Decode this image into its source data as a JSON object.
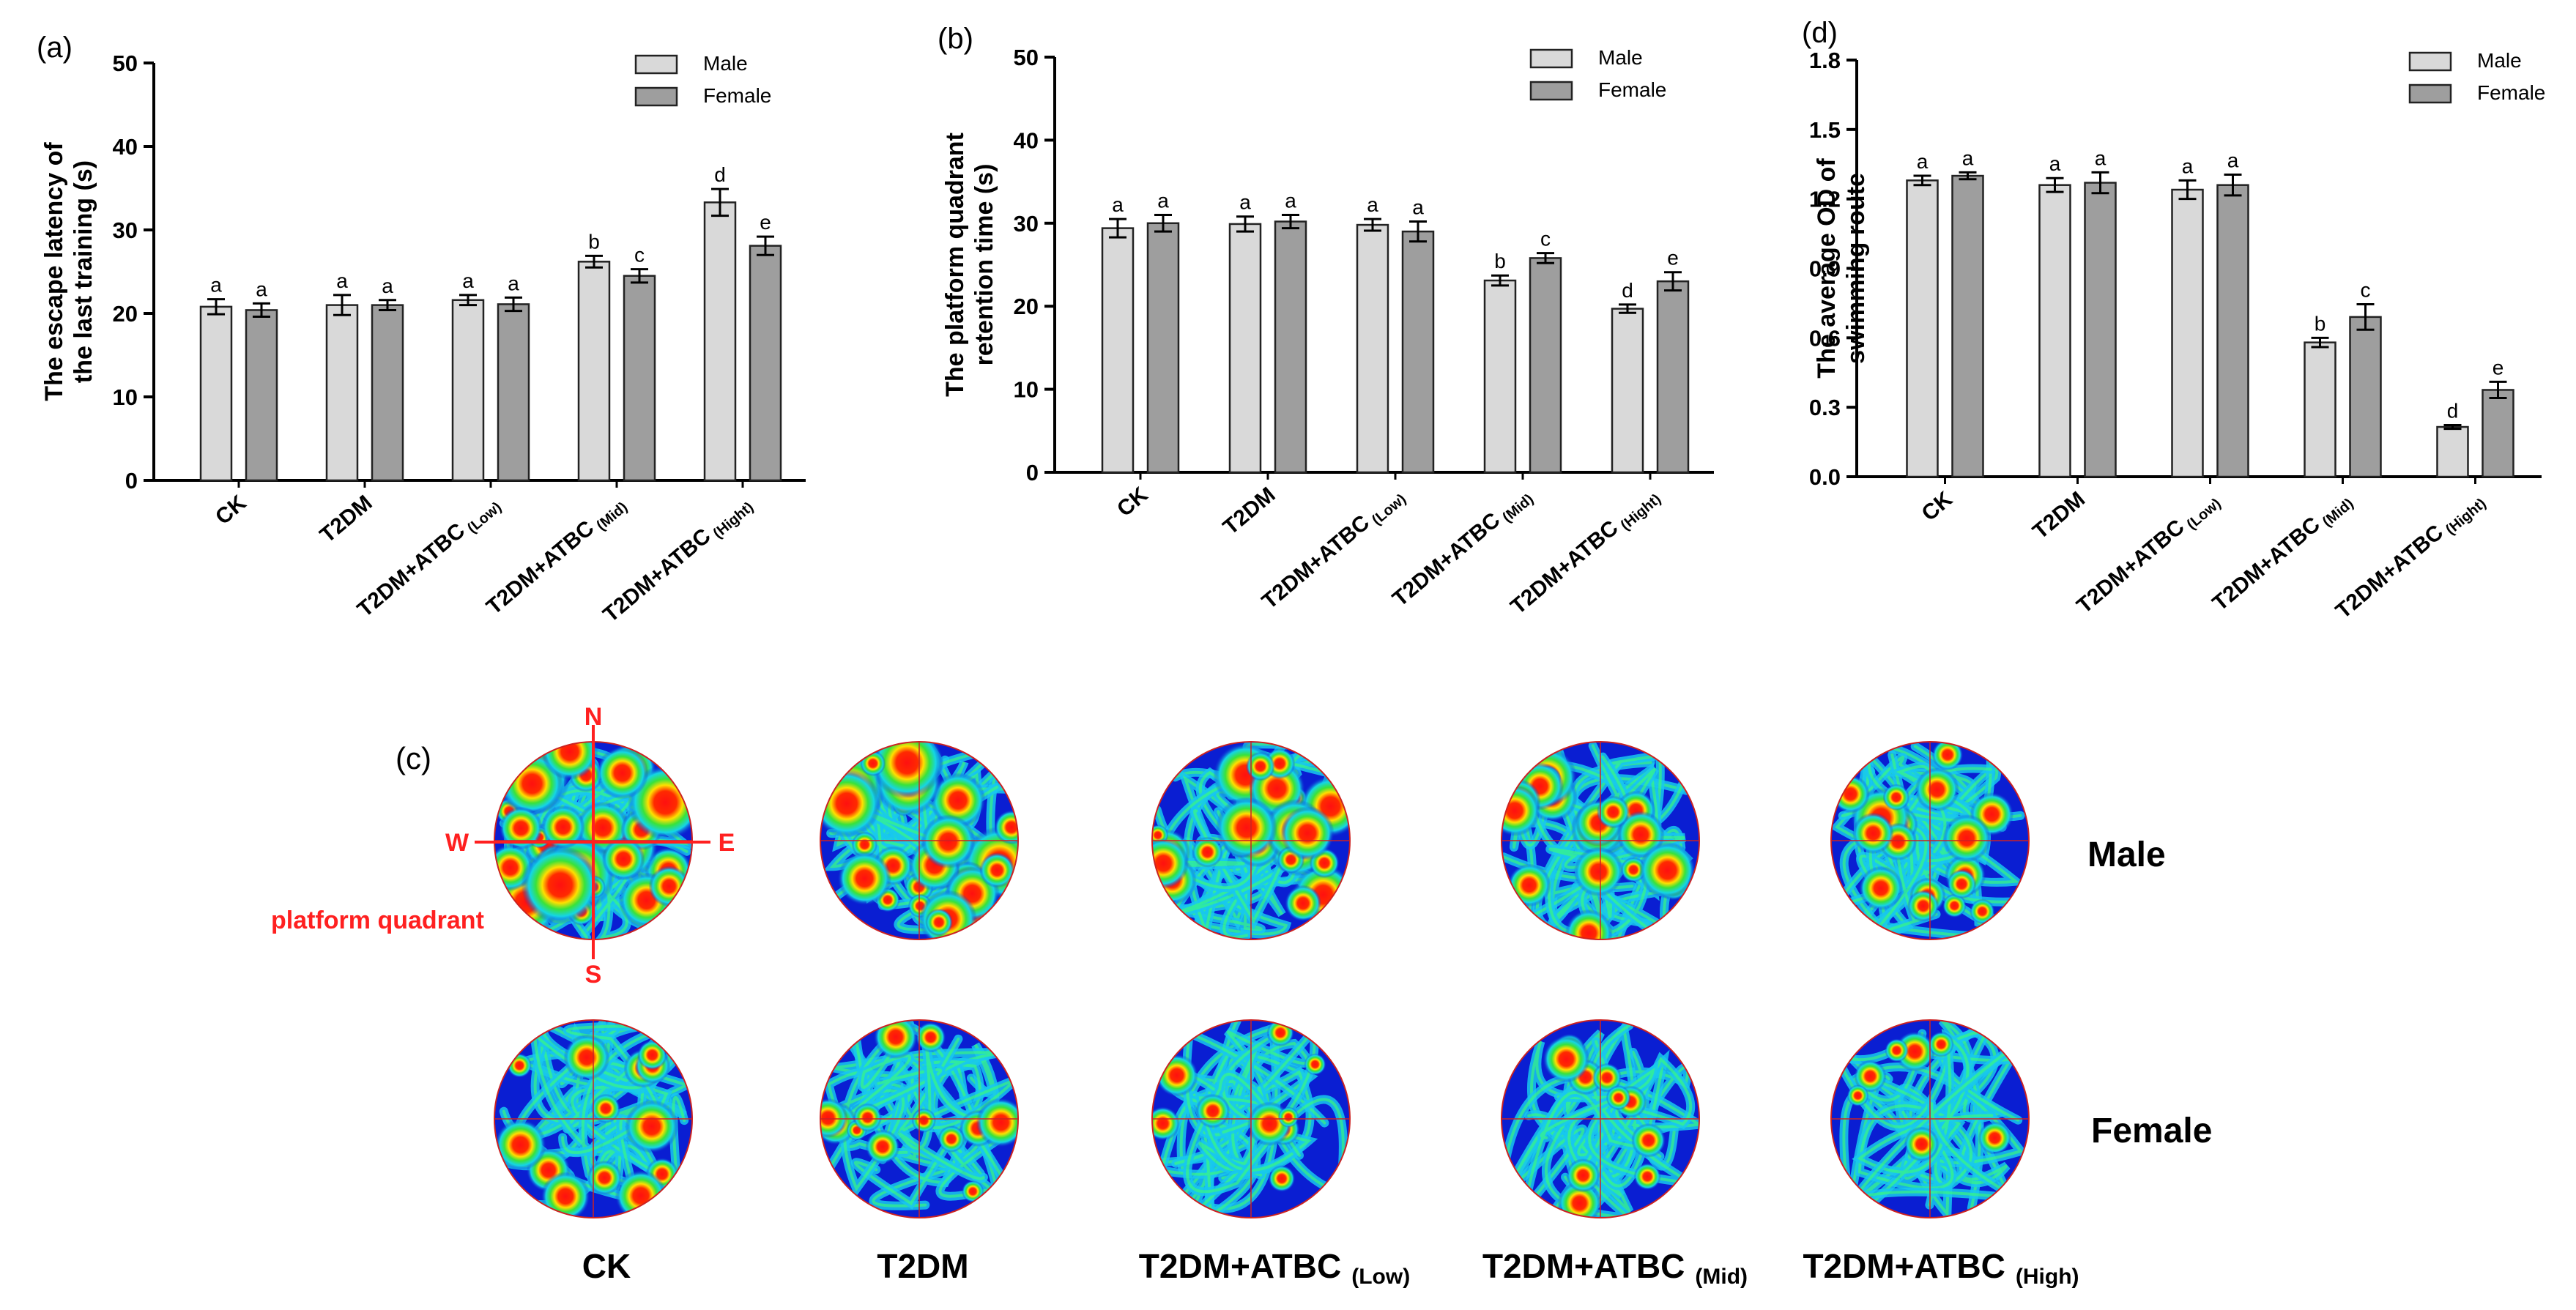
{
  "colors": {
    "male": "#d9d9d9",
    "female": "#9e9e9e",
    "bar_stroke": "#222222",
    "compass": "#ff2020",
    "map_bg": "#0a1ed2",
    "map_ring": "#cc2222"
  },
  "chart_data": [
    {
      "panel": "(a)",
      "type": "bar",
      "title": "",
      "ylabel": "The escape latency of the last training (s)",
      "ylabel_lines": [
        "The escape latency of",
        "the last training (s)"
      ],
      "ylim": [
        0,
        50
      ],
      "yticks": [
        "0",
        "10",
        "20",
        "30",
        "40",
        "50"
      ],
      "categories": [
        "CK",
        "T2DM",
        "T2DM+ATBC",
        "T2DM+ATBC",
        "T2DM+ATBC"
      ],
      "category_subscripts": [
        "",
        "",
        "(Low)",
        "(Mid)",
        "(Hight)"
      ],
      "legend": [
        "Male",
        "Female"
      ],
      "legend_position": "top-right",
      "series": [
        {
          "name": "Male",
          "values": [
            20.8,
            21.0,
            21.6,
            26.2,
            33.3
          ],
          "errors": [
            0.9,
            1.2,
            0.6,
            0.7,
            1.6
          ],
          "letters": [
            "a",
            "a",
            "a",
            "b",
            "d"
          ]
        },
        {
          "name": "Female",
          "values": [
            20.4,
            21.0,
            21.1,
            24.5,
            28.1
          ],
          "errors": [
            0.8,
            0.6,
            0.8,
            0.8,
            1.1
          ],
          "letters": [
            "a",
            "a",
            "a",
            "c",
            "e"
          ]
        }
      ]
    },
    {
      "panel": "(b)",
      "type": "bar",
      "title": "",
      "ylabel": "The platform quadrant retention time (s)",
      "ylabel_lines": [
        "The platform quadrant",
        "retention time (s)"
      ],
      "ylim": [
        0,
        50
      ],
      "yticks": [
        "0",
        "10",
        "20",
        "30",
        "40",
        "50"
      ],
      "categories": [
        "CK",
        "T2DM",
        "T2DM+ATBC",
        "T2DM+ATBC",
        "T2DM+ATBC"
      ],
      "category_subscripts": [
        "",
        "",
        "(Low)",
        "(Mid)",
        "(Hight)"
      ],
      "legend": [
        "Male",
        "Female"
      ],
      "legend_position": "top-right",
      "series": [
        {
          "name": "Male",
          "values": [
            29.4,
            29.9,
            29.8,
            23.1,
            19.7
          ],
          "errors": [
            1.1,
            0.9,
            0.7,
            0.6,
            0.5
          ],
          "letters": [
            "a",
            "a",
            "a",
            "b",
            "d"
          ]
        },
        {
          "name": "Female",
          "values": [
            30.0,
            30.2,
            29.0,
            25.8,
            23.0
          ],
          "errors": [
            1.0,
            0.8,
            1.2,
            0.6,
            1.1
          ],
          "letters": [
            "a",
            "a",
            "a",
            "c",
            "e"
          ]
        }
      ]
    },
    {
      "panel": "(d)",
      "type": "bar",
      "title": "",
      "ylabel": "The average OD of swimming route",
      "ylabel_lines": [
        "The average OD of",
        "swimming route"
      ],
      "ylim": [
        0,
        1.8
      ],
      "yticks": [
        "0.0",
        "0.3",
        "0.6",
        "0.9",
        "1.2",
        "1.5",
        "1.8"
      ],
      "categories": [
        "CK",
        "T2DM",
        "T2DM+ATBC",
        "T2DM+ATBC",
        "T2DM+ATBC"
      ],
      "category_subscripts": [
        "",
        "",
        "(Low)",
        "(Mid)",
        "(Hight)"
      ],
      "legend": [
        "Male",
        "Female"
      ],
      "legend_position": "top-right",
      "series": [
        {
          "name": "Male",
          "values": [
            1.28,
            1.26,
            1.24,
            0.58,
            0.215
          ],
          "errors": [
            0.02,
            0.03,
            0.04,
            0.02,
            0.008
          ],
          "letters": [
            "a",
            "a",
            "a",
            "b",
            "d"
          ]
        },
        {
          "name": "Female",
          "values": [
            1.3,
            1.27,
            1.26,
            0.69,
            0.375
          ],
          "errors": [
            0.015,
            0.045,
            0.045,
            0.055,
            0.035
          ],
          "letters": [
            "a",
            "a",
            "a",
            "c",
            "e"
          ]
        }
      ]
    }
  ],
  "panel_c": {
    "label": "(c)",
    "compass": {
      "north": "N",
      "south": "S",
      "west": "W",
      "east": "E"
    },
    "platform_label": "platform quadrant",
    "rows": [
      "Male",
      "Female"
    ],
    "columns": [
      {
        "main": "CK",
        "sub": ""
      },
      {
        "main": "T2DM",
        "sub": ""
      },
      {
        "main": "T2DM+ATBC",
        "sub": "(Low)"
      },
      {
        "main": "T2DM+ATBC",
        "sub": "(Mid)"
      },
      {
        "main": "T2DM+ATBC",
        "sub": "(High)"
      }
    ],
    "density_levels": [
      0.95,
      0.8,
      0.65,
      0.55,
      0.5,
      0.35,
      0.3,
      0.2,
      0.22,
      0.12
    ]
  }
}
